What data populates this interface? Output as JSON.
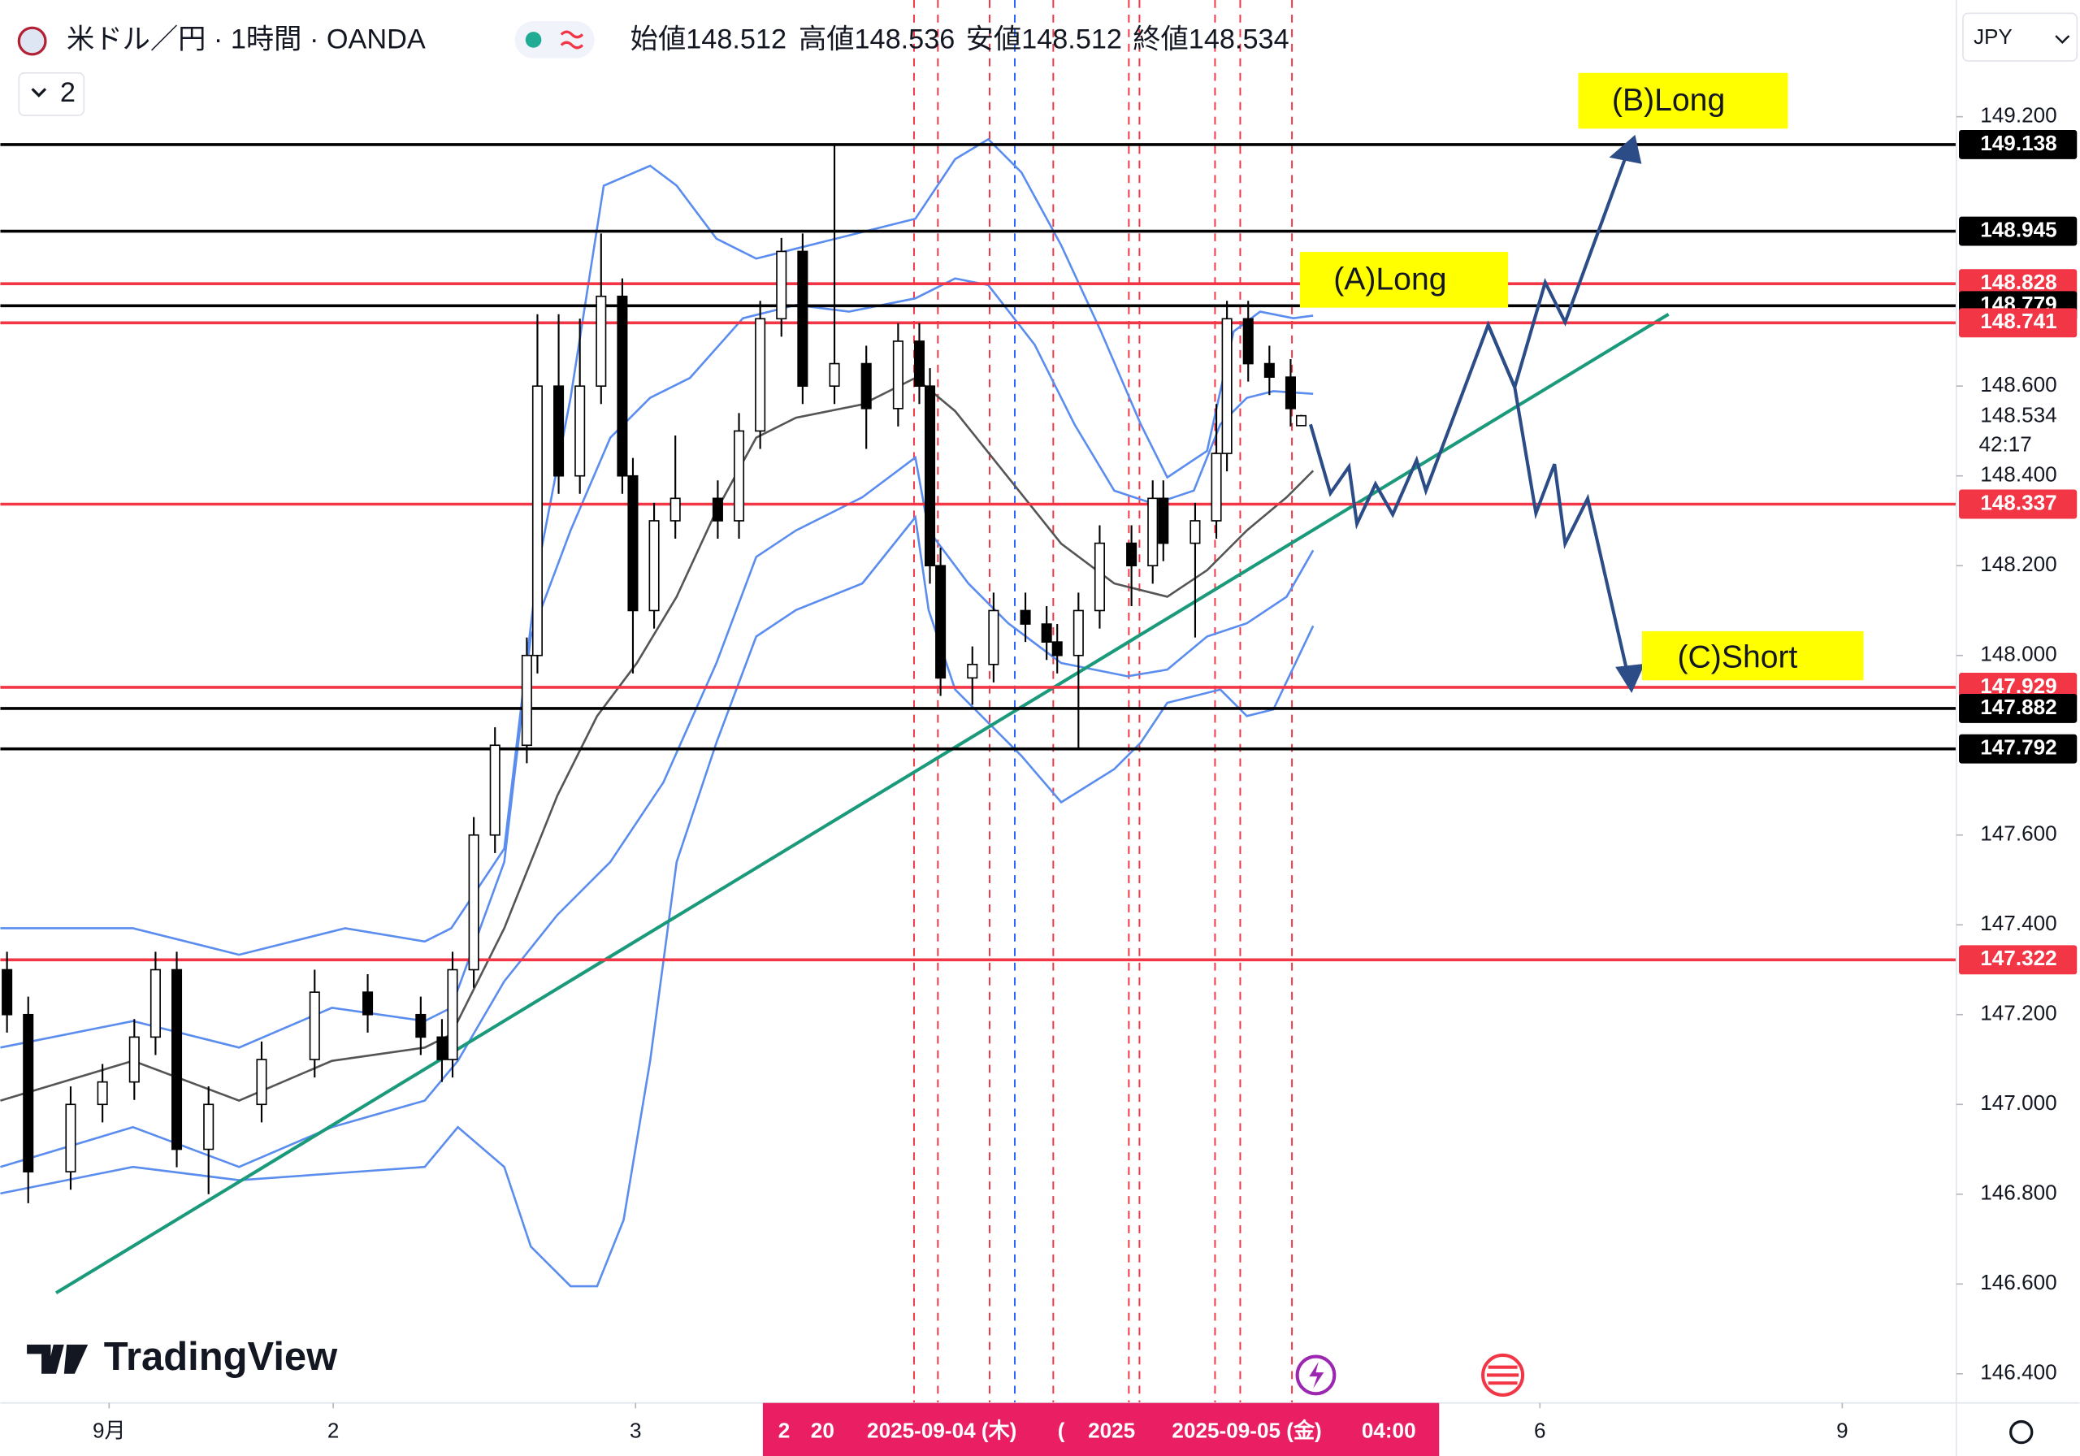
{
  "chart_data": {
    "type": "candlestick",
    "title": "米ドル／円 · 1時間 · OANDA",
    "legend_items": [
      "始値148.512",
      "高値148.536",
      "安値148.512",
      "終値148.534"
    ],
    "collapsed_indicators": 2,
    "currency": "JPY",
    "watermark": "TradingView",
    "up_color": "#ffffff",
    "down_color": "#000000",
    "x": [
      0,
      2,
      6,
      9,
      12,
      14,
      16,
      19,
      24,
      29,
      34,
      39,
      41,
      42,
      44,
      46,
      49,
      50,
      52,
      54,
      56,
      58,
      59,
      61,
      63,
      67,
      69,
      71,
      73,
      75,
      78,
      81,
      84,
      86,
      87,
      88,
      91,
      93,
      96,
      98,
      99,
      101,
      103,
      106,
      108,
      109,
      112,
      114,
      115,
      117,
      119,
      121,
      122
    ],
    "open": [
      147.3,
      147.2,
      146.85,
      147.0,
      147.05,
      147.15,
      147.3,
      146.9,
      147.0,
      147.1,
      147.25,
      147.2,
      147.15,
      147.1,
      147.3,
      147.6,
      147.8,
      148.0,
      148.6,
      148.4,
      148.6,
      148.8,
      148.4,
      148.1,
      148.3,
      148.35,
      148.3,
      148.5,
      148.75,
      148.9,
      148.6,
      148.65,
      148.55,
      148.7,
      148.6,
      148.2,
      147.95,
      147.98,
      148.1,
      148.07,
      148.03,
      148.0,
      148.1,
      148.25,
      148.2,
      148.35,
      148.25,
      148.3,
      148.45,
      148.75,
      148.65,
      148.62,
      148.512
    ],
    "high": [
      147.34,
      147.24,
      147.04,
      147.09,
      147.19,
      147.34,
      147.34,
      147.04,
      147.14,
      147.3,
      147.29,
      147.24,
      147.19,
      147.34,
      147.64,
      147.84,
      148.04,
      148.76,
      148.76,
      148.75,
      148.94,
      148.84,
      148.44,
      148.34,
      148.49,
      148.39,
      148.54,
      148.79,
      148.93,
      148.94,
      149.14,
      148.69,
      148.74,
      148.74,
      148.64,
      148.24,
      148.02,
      148.14,
      148.14,
      148.11,
      148.07,
      148.14,
      148.29,
      148.29,
      148.39,
      148.39,
      148.34,
      148.56,
      148.79,
      148.79,
      148.69,
      148.66,
      148.536
    ],
    "low": [
      147.16,
      146.78,
      146.81,
      146.96,
      147.01,
      147.11,
      146.86,
      146.8,
      146.96,
      147.06,
      147.16,
      147.11,
      147.05,
      147.06,
      147.26,
      147.56,
      147.76,
      147.96,
      148.36,
      148.36,
      148.56,
      148.36,
      147.96,
      148.06,
      148.26,
      148.26,
      148.26,
      148.46,
      148.71,
      148.56,
      148.56,
      148.46,
      148.51,
      148.56,
      148.16,
      147.91,
      147.89,
      147.94,
      148.03,
      147.99,
      147.96,
      147.79,
      148.06,
      148.11,
      148.16,
      148.21,
      148.04,
      148.26,
      148.41,
      148.61,
      148.58,
      148.51,
      148.512
    ],
    "close": [
      147.2,
      146.85,
      147.0,
      147.05,
      147.15,
      147.3,
      146.9,
      147.0,
      147.1,
      147.25,
      147.2,
      147.15,
      147.1,
      147.3,
      147.6,
      147.8,
      148.0,
      148.6,
      148.4,
      148.6,
      148.8,
      148.4,
      148.1,
      148.3,
      148.35,
      148.3,
      148.5,
      148.75,
      148.9,
      148.6,
      148.65,
      148.55,
      148.7,
      148.6,
      148.2,
      147.95,
      147.98,
      148.1,
      148.07,
      148.03,
      148.0,
      148.1,
      148.25,
      148.2,
      148.35,
      148.25,
      148.3,
      148.45,
      148.75,
      148.65,
      148.62,
      148.55,
      148.534
    ],
    "xlim": [
      -0.625,
      183.75
    ],
    "xticks": [
      {
        "value": 9.625,
        "label": "9月"
      },
      {
        "value": 30.75,
        "label": "2"
      },
      {
        "value": 59.25,
        "label": "3"
      },
      {
        "value": 144.5,
        "label": "6"
      },
      {
        "value": 173,
        "label": "9"
      }
    ],
    "ylim": [
      146.335,
      149.46
    ],
    "yticks": [
      {
        "value": 149.2,
        "label": "149.200"
      },
      {
        "value": 148.6,
        "label": "148.600"
      },
      {
        "value": 148.4,
        "label": "148.400"
      },
      {
        "value": 148.2,
        "label": "148.200"
      },
      {
        "value": 148.0,
        "label": "148.000"
      },
      {
        "value": 147.6,
        "label": "147.600"
      },
      {
        "value": 147.4,
        "label": "147.400"
      },
      {
        "value": 147.2,
        "label": "147.200"
      },
      {
        "value": 147.0,
        "label": "147.000"
      },
      {
        "value": 146.8,
        "label": "146.800"
      },
      {
        "value": 146.6,
        "label": "146.600"
      },
      {
        "value": 146.4,
        "label": "146.400"
      }
    ],
    "current_price": {
      "value": 148.534,
      "countdown": "42:17"
    },
    "levels": [
      {
        "value": 149.138,
        "color": "#000000"
      },
      {
        "value": 148.945,
        "color": "#000000"
      },
      {
        "value": 148.828,
        "color": "#f23645"
      },
      {
        "value": 148.779,
        "color": "#000000"
      },
      {
        "value": 148.741,
        "color": "#f23645"
      },
      {
        "value": 148.337,
        "color": "#f23645"
      },
      {
        "value": 147.929,
        "color": "#f23645"
      },
      {
        "value": 147.882,
        "color": "#000000"
      },
      {
        "value": 147.792,
        "color": "#000000"
      },
      {
        "value": 147.322,
        "color": "#f23645"
      }
    ],
    "annotations": [
      "(B)Long",
      "(A)Long",
      "(C)Short"
    ],
    "crosshair_labels": [
      "2",
      "20",
      "2025-09-04 (木)",
      "(",
      "2025",
      "2025-09-05 (金)",
      "04:00"
    ]
  }
}
